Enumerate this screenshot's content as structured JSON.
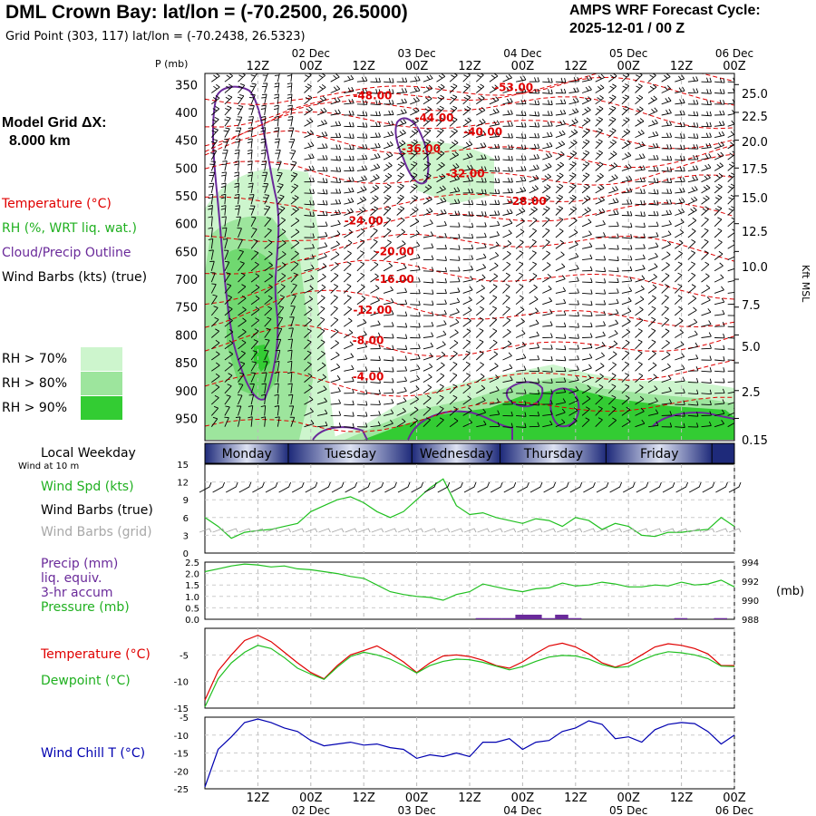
{
  "header": {
    "title": "DML Crown Bay:  lat/lon = (-70.2500, 26.5000)",
    "subtitle": "Grid Point (303, 117) lat/lon = (-70.2438, 26.5323)",
    "cycle_line1": "AMPS WRF Forecast Cycle:",
    "cycle_line2": "2025-12-01 / 00  Z",
    "grid_label": "Model Grid ΔX:",
    "grid_value": "8.000 km"
  },
  "legend": {
    "temperature": "Temperature (°C)",
    "rh": "RH (%, WRT liq. wat.)",
    "cloud": "Cloud/Precip Outline",
    "wind_barbs": "Wind Barbs (kts) (true)",
    "rh70": "RH > 70%",
    "rh80": "RH > 80%",
    "rh90": "RH > 90%",
    "colors": {
      "temperature": "#e00000",
      "rh": "#20c020",
      "cloud": "#6a2a9a",
      "rh70": "#cdf5cd",
      "rh80": "#9de59d",
      "rh90": "#33cc33",
      "windchill": "#0000b0",
      "grid_barbs": "#a8a8a8"
    }
  },
  "time_axis": {
    "hour_labels": [
      "12Z",
      "00Z",
      "12Z",
      "00Z",
      "12Z",
      "00Z",
      "12Z",
      "00Z",
      "12Z",
      "00Z"
    ],
    "hours": [
      12,
      24,
      36,
      48,
      60,
      72,
      84,
      96,
      108,
      120
    ],
    "date_labels": [
      "02 Dec",
      "03 Dec",
      "04 Dec",
      "05 Dec",
      "06 Dec"
    ],
    "date_hours": [
      24,
      48,
      72,
      96,
      120
    ],
    "range_hours": [
      0,
      120
    ]
  },
  "weekdays": {
    "title": "Local Weekday",
    "days": [
      "Monday",
      "Tuesday",
      "Wednesday",
      "Thursday",
      "Friday"
    ],
    "bounds_hours": [
      0,
      19,
      47,
      67,
      91,
      115
    ]
  },
  "chart_data": [
    {
      "type": "area",
      "name": "cross_section",
      "ylabel": "P (mb)",
      "y2label": "Kft MSL",
      "pressure_ticks": [
        350,
        400,
        450,
        500,
        550,
        600,
        650,
        700,
        750,
        800,
        850,
        900,
        950
      ],
      "height_ticks": [
        "25.0",
        "22.5",
        "20.0",
        "17.5",
        "15.0",
        "12.5",
        "10.0",
        "7.5",
        "5.0",
        "2.5",
        "0.15"
      ],
      "temperature_labels": [
        {
          "text": "-53.00",
          "hour": 70,
          "p": 355
        },
        {
          "text": "-48.00",
          "hour": 38,
          "p": 370
        },
        {
          "text": "-44.00",
          "hour": 52,
          "p": 410
        },
        {
          "text": "-40.00",
          "hour": 63,
          "p": 435
        },
        {
          "text": "-36.00",
          "hour": 49,
          "p": 465
        },
        {
          "text": "-32.00",
          "hour": 59,
          "p": 510
        },
        {
          "text": "-28.00",
          "hour": 73,
          "p": 560
        },
        {
          "text": "-24.00",
          "hour": 36,
          "p": 595
        },
        {
          "text": "-20.00",
          "hour": 43,
          "p": 650
        },
        {
          "text": "-16.00",
          "hour": 43,
          "p": 700
        },
        {
          "text": "-12.00",
          "hour": 38,
          "p": 755
        },
        {
          "text": "-8.00",
          "hour": 37,
          "p": 810
        },
        {
          "text": "-4.00",
          "hour": 37,
          "p": 875
        }
      ]
    },
    {
      "type": "line",
      "name": "wind",
      "labels": [
        "Wind at 10 m",
        "Wind Spd (kts)",
        "Wind Barbs (true)",
        "Wind Barbs (grid)"
      ],
      "ylim": [
        0,
        15
      ],
      "yticks": [
        0,
        3,
        6,
        9,
        12,
        15
      ],
      "x_hours": [
        0,
        3,
        6,
        9,
        12,
        15,
        18,
        21,
        24,
        27,
        30,
        33,
        36,
        39,
        42,
        45,
        48,
        51,
        54,
        57,
        60,
        63,
        66,
        69,
        72,
        75,
        78,
        81,
        84,
        87,
        90,
        93,
        96,
        99,
        102,
        105,
        108,
        111,
        114,
        117,
        120
      ],
      "speed": [
        6,
        4.5,
        2.5,
        3.5,
        3.8,
        4,
        4.5,
        5,
        7,
        8,
        9,
        9.5,
        8.5,
        7,
        6,
        7,
        9,
        11,
        12.5,
        8,
        6.5,
        6.8,
        6,
        5.5,
        5,
        5.8,
        5.5,
        4.5,
        6,
        5.5,
        4,
        5,
        4.5,
        3,
        2.8,
        3.5,
        3.5,
        3.8,
        4,
        6,
        4.5
      ]
    },
    {
      "type": "line",
      "name": "precip_pressure",
      "labels": [
        "Precip (mm)",
        "liq. equiv.",
        "3-hr accum",
        "Pressure (mb)"
      ],
      "y2label": "(mb)",
      "ylim": [
        0,
        2.5
      ],
      "yticks": [
        "0.0",
        "0.5",
        "1.0",
        "1.5",
        "2.0",
        "2.5"
      ],
      "y2lim": [
        988,
        994
      ],
      "y2ticks": [
        988,
        990,
        992,
        994
      ],
      "x_hours": [
        0,
        3,
        6,
        9,
        12,
        15,
        18,
        21,
        24,
        27,
        30,
        33,
        36,
        39,
        42,
        45,
        48,
        51,
        54,
        57,
        60,
        63,
        66,
        69,
        72,
        75,
        78,
        81,
        84,
        87,
        90,
        93,
        96,
        99,
        102,
        105,
        108,
        111,
        114,
        117,
        120
      ],
      "pressure": [
        993.0,
        993.3,
        993.6,
        993.8,
        993.7,
        993.5,
        993.6,
        993.3,
        993.2,
        993.0,
        992.8,
        992.5,
        992.3,
        991.6,
        990.9,
        990.6,
        990.4,
        990.3,
        990.0,
        990.6,
        990.9,
        991.7,
        991.4,
        991.1,
        990.9,
        991.2,
        991.3,
        991.8,
        991.5,
        991.6,
        991.9,
        991.7,
        991.4,
        991.4,
        991.6,
        991.5,
        991.9,
        991.6,
        991.7,
        992.1,
        991.4
      ],
      "precip": [
        {
          "hour": 63,
          "mm": 0.05
        },
        {
          "hour": 66,
          "mm": 0.05
        },
        {
          "hour": 69,
          "mm": 0.05
        },
        {
          "hour": 72,
          "mm": 0.2
        },
        {
          "hour": 75,
          "mm": 0.2
        },
        {
          "hour": 78,
          "mm": 0.05
        },
        {
          "hour": 81,
          "mm": 0.2
        },
        {
          "hour": 84,
          "mm": 0.05
        },
        {
          "hour": 108,
          "mm": 0.05
        },
        {
          "hour": 117,
          "mm": 0.05
        }
      ]
    },
    {
      "type": "line",
      "name": "temperature",
      "labels": [
        "Temperature (°C)",
        "Dewpoint (°C)"
      ],
      "ylim": [
        -15,
        0
      ],
      "yticks": [
        -5,
        -10,
        -15
      ],
      "x_hours": [
        0,
        3,
        6,
        9,
        12,
        15,
        18,
        21,
        24,
        27,
        30,
        33,
        36,
        39,
        42,
        45,
        48,
        51,
        54,
        57,
        60,
        63,
        66,
        69,
        72,
        75,
        78,
        81,
        84,
        87,
        90,
        93,
        96,
        99,
        102,
        105,
        108,
        111,
        114,
        117,
        120
      ],
      "temp": [
        -13.5,
        -8,
        -5,
        -2.3,
        -1.3,
        -2.5,
        -4.5,
        -6.5,
        -8.3,
        -9.5,
        -7,
        -5,
        -4.2,
        -3.3,
        -4.7,
        -6.3,
        -8.3,
        -6.5,
        -5.2,
        -5,
        -5.3,
        -6,
        -7,
        -7.5,
        -6.3,
        -4.7,
        -3.3,
        -2.8,
        -3.5,
        -4.8,
        -6.5,
        -7.3,
        -6.5,
        -5,
        -3.5,
        -2.9,
        -3.2,
        -3.8,
        -4.8,
        -7.0,
        -7.0
      ],
      "dewpoint": [
        -14.8,
        -9.5,
        -6.5,
        -4.5,
        -3.2,
        -3.8,
        -5.5,
        -7.5,
        -8.6,
        -9.6,
        -7.3,
        -5.3,
        -4.5,
        -5,
        -5.8,
        -7,
        -8.4,
        -7,
        -6.2,
        -5.8,
        -5.9,
        -6.4,
        -7.1,
        -7.8,
        -7.2,
        -6.2,
        -5.4,
        -5.1,
        -5.2,
        -5.8,
        -6.8,
        -7.4,
        -7.2,
        -6.0,
        -5.0,
        -4.4,
        -4.6,
        -5.0,
        -5.7,
        -7.1,
        -7.2
      ]
    },
    {
      "type": "line",
      "name": "wind_chill",
      "labels": [
        "Wind Chill T (°C)"
      ],
      "ylim": [
        -25,
        -5
      ],
      "yticks": [
        -5,
        -10,
        -15,
        -20,
        -25
      ],
      "x_hours": [
        0,
        3,
        6,
        9,
        12,
        15,
        18,
        21,
        24,
        27,
        30,
        33,
        36,
        39,
        42,
        45,
        48,
        51,
        54,
        57,
        60,
        63,
        66,
        69,
        72,
        75,
        78,
        81,
        84,
        87,
        90,
        93,
        96,
        99,
        102,
        105,
        108,
        111,
        114,
        117,
        120
      ],
      "windchill": [
        -24.5,
        -14,
        -10.5,
        -6.5,
        -5.5,
        -6.5,
        -8,
        -9,
        -11.5,
        -13,
        -12.5,
        -12,
        -12.8,
        -12.5,
        -13.5,
        -14,
        -16.5,
        -15.5,
        -16,
        -15,
        -16,
        -12,
        -12,
        -11,
        -14,
        -12,
        -11.5,
        -9,
        -8,
        -6,
        -7,
        -11,
        -10.5,
        -12,
        -8.5,
        -7,
        -6.5,
        -6.8,
        -9,
        -12.5,
        -10
      ]
    }
  ]
}
